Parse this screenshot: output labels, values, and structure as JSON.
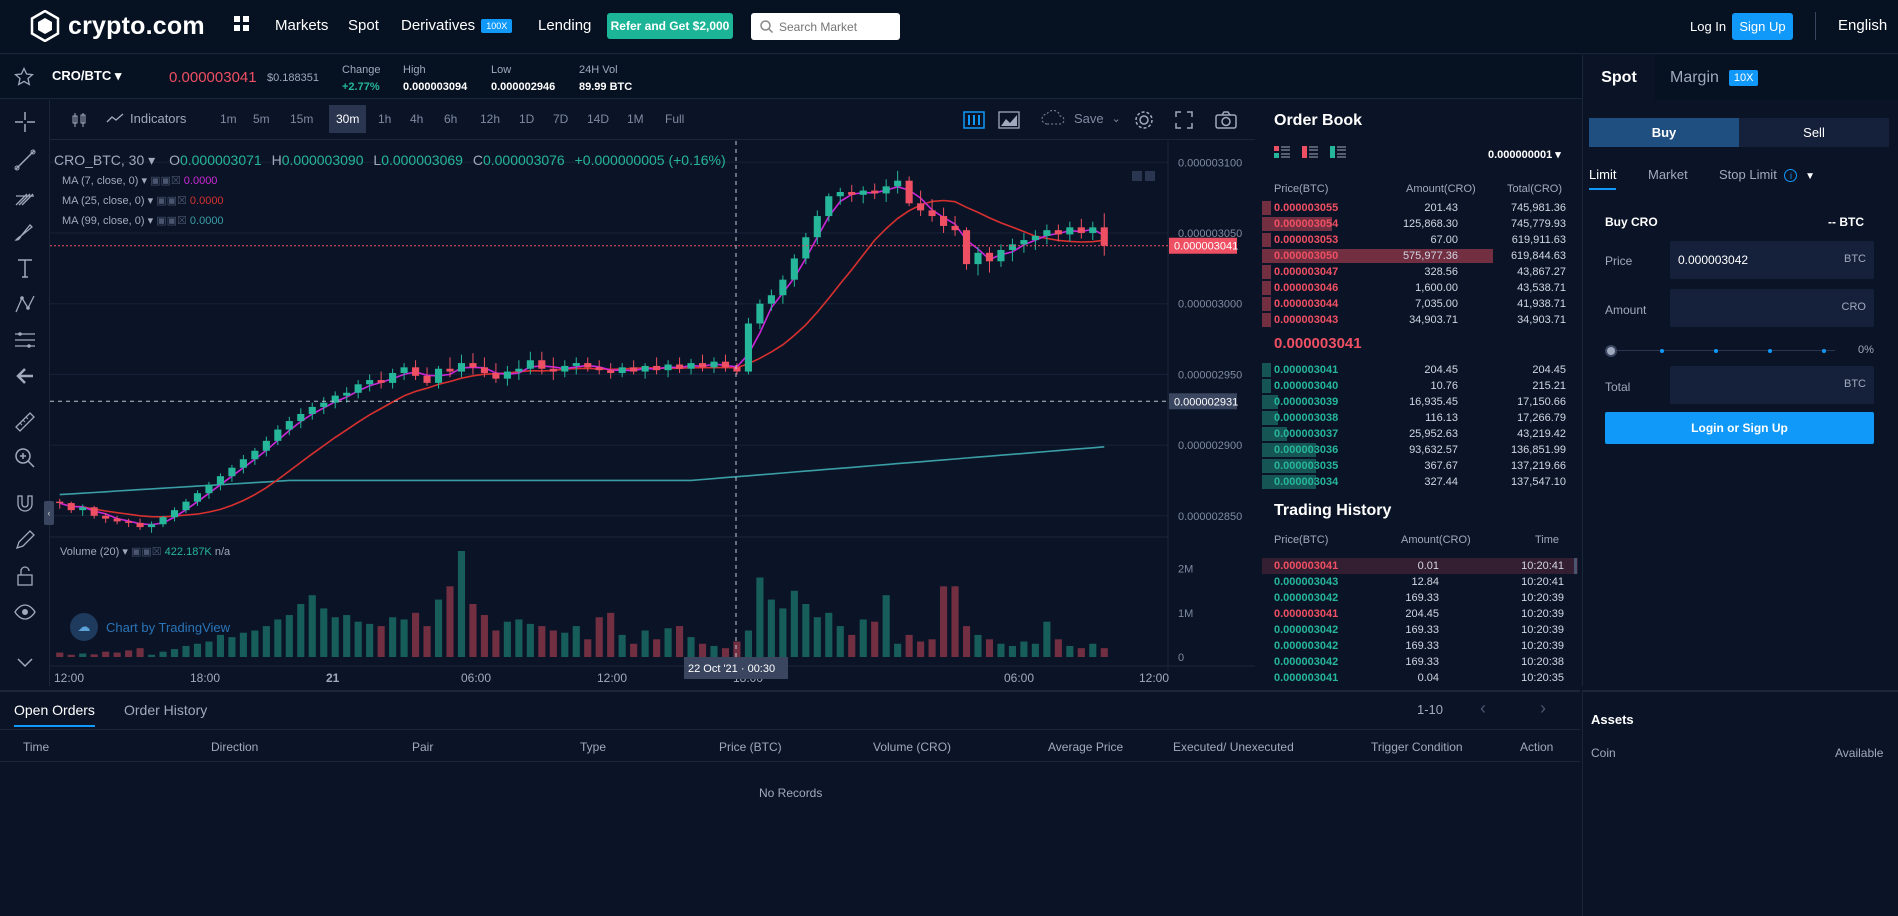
{
  "nav": {
    "logo_text": "crypto.com",
    "markets": "Markets",
    "spot": "Spot",
    "derivatives": "Derivatives",
    "derivatives_badge": "100X",
    "lending": "Lending",
    "refer": "Refer and Get $2,000",
    "search_placeholder": "Search Market",
    "login": "Log In",
    "signup": "Sign Up",
    "language": "English"
  },
  "ticker": {
    "pair": "CRO/BTC",
    "price": "0.000003041",
    "usd": "$0.188351",
    "change_label": "Change",
    "change": "+2.77%",
    "high_label": "High",
    "high": "0.000003094",
    "low_label": "Low",
    "low": "0.000002946",
    "vol_label": "24H Vol",
    "vol": "89.99 BTC"
  },
  "chart_toolbar": {
    "indicators": "Indicators",
    "timeframes": [
      "1m",
      "5m",
      "15m",
      "30m",
      "1h",
      "4h",
      "6h",
      "12h",
      "1D",
      "7D",
      "14D",
      "1M",
      "Full"
    ],
    "active_timeframe": "30m",
    "save": "Save"
  },
  "legend": {
    "symbol": "CRO_BTC, 30",
    "o_label": "O",
    "o": "0.000003071",
    "h_label": "H",
    "h": "0.000003090",
    "l_label": "L",
    "l": "0.000003069",
    "c_label": "C",
    "c": "0.000003076",
    "chg": "+0.000000005 (+0.16%)",
    "ma7": "MA (7, close, 0)",
    "ma7_val": "0.0000",
    "ma25": "MA (25, close, 0)",
    "ma25_val": "0.0000",
    "ma99": "MA (99, close, 0)",
    "ma99_val": "0.0000",
    "volume": "Volume (20)",
    "volume_val": "422.187K",
    "volume_na": "n/a",
    "watermark": "Chart by TradingView",
    "crosshair_date": "22 Oct '21 · 00:30",
    "last_price_tag": "0.000003041",
    "crosshair_price_tag": "0.000002931"
  },
  "chart_data": {
    "type": "candlestick",
    "price_axis": [
      "0.000003100",
      "0.000003050",
      "0.000003000",
      "0.000002950",
      "0.000002900",
      "0.000002850"
    ],
    "volume_axis": [
      "2M",
      "1M",
      "0"
    ],
    "time_axis": [
      "12:00",
      "18:00",
      "21",
      "06:00",
      "12:00",
      "18:00",
      "06:00",
      "12:00"
    ],
    "candles": [
      [
        2.86,
        2.862,
        2.855,
        2.859
      ],
      [
        2.859,
        2.86,
        2.852,
        2.854
      ],
      [
        2.854,
        2.858,
        2.85,
        2.856
      ],
      [
        2.856,
        2.857,
        2.848,
        2.85
      ],
      [
        2.85,
        2.852,
        2.845,
        2.848
      ],
      [
        2.848,
        2.85,
        2.844,
        2.846
      ],
      [
        2.846,
        2.848,
        2.842,
        2.845
      ],
      [
        2.845,
        2.848,
        2.84,
        2.842
      ],
      [
        2.842,
        2.846,
        2.838,
        2.844
      ],
      [
        2.844,
        2.85,
        2.842,
        2.849
      ],
      [
        2.849,
        2.856,
        2.846,
        2.854
      ],
      [
        2.854,
        2.862,
        2.852,
        2.86
      ],
      [
        2.86,
        2.868,
        2.857,
        2.866
      ],
      [
        2.866,
        2.874,
        2.862,
        2.872
      ],
      [
        2.872,
        2.88,
        2.868,
        2.878
      ],
      [
        2.878,
        2.886,
        2.874,
        2.884
      ],
      [
        2.884,
        2.893,
        2.88,
        2.89
      ],
      [
        2.89,
        2.898,
        2.886,
        2.896
      ],
      [
        2.896,
        2.906,
        2.892,
        2.903
      ],
      [
        2.903,
        2.914,
        2.9,
        2.911
      ],
      [
        2.911,
        2.92,
        2.907,
        2.917
      ],
      [
        2.917,
        2.926,
        2.912,
        2.922
      ],
      [
        2.922,
        2.93,
        2.918,
        2.927
      ],
      [
        2.927,
        2.934,
        2.922,
        2.93
      ],
      [
        2.93,
        2.938,
        2.926,
        2.935
      ],
      [
        2.935,
        2.941,
        2.93,
        2.937
      ],
      [
        2.937,
        2.946,
        2.933,
        2.943
      ],
      [
        2.943,
        2.95,
        2.938,
        2.946
      ],
      [
        2.946,
        2.952,
        2.94,
        2.944
      ],
      [
        2.944,
        2.954,
        2.94,
        2.951
      ],
      [
        2.951,
        2.958,
        2.946,
        2.955
      ],
      [
        2.955,
        2.96,
        2.946,
        2.949
      ],
      [
        2.949,
        2.955,
        2.942,
        2.944
      ],
      [
        2.944,
        2.956,
        2.94,
        2.954
      ],
      [
        2.954,
        2.962,
        2.948,
        2.952
      ],
      [
        2.952,
        2.964,
        2.948,
        2.958
      ],
      [
        2.958,
        2.965,
        2.95,
        2.955
      ],
      [
        2.955,
        2.962,
        2.948,
        2.951
      ],
      [
        2.951,
        2.958,
        2.944,
        2.947
      ],
      [
        2.947,
        2.956,
        2.942,
        2.952
      ],
      [
        2.952,
        2.96,
        2.946,
        2.954
      ],
      [
        2.954,
        2.966,
        2.95,
        2.96
      ],
      [
        2.96,
        2.966,
        2.95,
        2.954
      ],
      [
        2.954,
        2.962,
        2.946,
        2.952
      ],
      [
        2.952,
        2.96,
        2.948,
        2.956
      ],
      [
        2.956,
        2.962,
        2.95,
        2.958
      ],
      [
        2.958,
        2.962,
        2.952,
        2.955
      ],
      [
        2.955,
        2.96,
        2.95,
        2.953
      ],
      [
        2.953,
        2.958,
        2.947,
        2.951
      ],
      [
        2.951,
        2.958,
        2.948,
        2.955
      ],
      [
        2.955,
        2.96,
        2.95,
        2.952
      ],
      [
        2.952,
        2.958,
        2.947,
        2.956
      ],
      [
        2.956,
        2.962,
        2.95,
        2.953
      ],
      [
        2.953,
        2.96,
        2.948,
        2.957
      ],
      [
        2.957,
        2.962,
        2.951,
        2.954
      ],
      [
        2.954,
        2.961,
        2.95,
        2.958
      ],
      [
        2.958,
        2.964,
        2.952,
        2.955
      ],
      [
        2.955,
        2.962,
        2.951,
        2.959
      ],
      [
        2.959,
        2.964,
        2.952,
        2.955
      ],
      [
        2.955,
        2.958,
        2.95,
        2.952
      ],
      [
        2.952,
        2.99,
        2.95,
        2.986
      ],
      [
        2.986,
        3.003,
        2.982,
        3.0
      ],
      [
        3.0,
        3.01,
        2.995,
        3.006
      ],
      [
        3.006,
        3.02,
        3.0,
        3.017
      ],
      [
        3.017,
        3.035,
        3.012,
        3.032
      ],
      [
        3.032,
        3.05,
        3.028,
        3.047
      ],
      [
        3.047,
        3.066,
        3.042,
        3.062
      ],
      [
        3.062,
        3.078,
        3.058,
        3.076
      ],
      [
        3.076,
        3.082,
        3.07,
        3.079
      ],
      [
        3.079,
        3.084,
        3.072,
        3.077
      ],
      [
        3.077,
        3.083,
        3.071,
        3.08
      ],
      [
        3.08,
        3.085,
        3.074,
        3.078
      ],
      [
        3.078,
        3.088,
        3.072,
        3.083
      ],
      [
        3.083,
        3.094,
        3.078,
        3.087
      ],
      [
        3.087,
        3.09,
        3.069,
        3.071
      ],
      [
        3.071,
        3.08,
        3.062,
        3.066
      ],
      [
        3.066,
        3.074,
        3.058,
        3.062
      ],
      [
        3.062,
        3.068,
        3.05,
        3.055
      ],
      [
        3.055,
        3.062,
        3.048,
        3.052
      ],
      [
        3.052,
        3.054,
        3.024,
        3.028
      ],
      [
        3.028,
        3.04,
        3.02,
        3.036
      ],
      [
        3.036,
        3.04,
        3.022,
        3.03
      ],
      [
        3.03,
        3.042,
        3.026,
        3.038
      ],
      [
        3.038,
        3.046,
        3.03,
        3.042
      ],
      [
        3.042,
        3.05,
        3.036,
        3.045
      ],
      [
        3.045,
        3.052,
        3.038,
        3.048
      ],
      [
        3.048,
        3.056,
        3.042,
        3.052
      ],
      [
        3.052,
        3.056,
        3.044,
        3.049
      ],
      [
        3.049,
        3.058,
        3.044,
        3.054
      ],
      [
        3.054,
        3.06,
        3.046,
        3.05
      ],
      [
        3.05,
        3.058,
        3.045,
        3.054
      ],
      [
        3.054,
        3.064,
        3.034,
        3.041
      ]
    ],
    "volumes": [
      0.1,
      0.05,
      0.08,
      0.06,
      0.12,
      0.1,
      0.15,
      0.2,
      0.05,
      0.12,
      0.18,
      0.25,
      0.3,
      0.35,
      0.5,
      0.45,
      0.55,
      0.6,
      0.7,
      0.85,
      0.95,
      1.2,
      1.4,
      1.1,
      0.9,
      0.95,
      0.8,
      0.75,
      0.7,
      0.9,
      0.85,
      1.0,
      0.7,
      1.3,
      1.6,
      2.4,
      1.2,
      0.95,
      0.6,
      0.8,
      0.85,
      0.75,
      0.7,
      0.6,
      0.55,
      0.7,
      0.4,
      0.9,
      1.0,
      0.5,
      0.3,
      0.6,
      0.4,
      0.65,
      0.7,
      0.45,
      0.3,
      0.25,
      0.2,
      0.35,
      0.6,
      1.8,
      1.3,
      1.1,
      1.5,
      1.2,
      0.9,
      1.0,
      0.7,
      0.5,
      0.85,
      0.8,
      1.4,
      0.3,
      0.5,
      0.35,
      0.4,
      1.6,
      1.6,
      0.7,
      0.5,
      0.4,
      0.3,
      0.25,
      0.35,
      0.3,
      0.8,
      0.4,
      0.25,
      0.2,
      0.3,
      0.2
    ],
    "vol_ylim": [
      0,
      2.4
    ]
  },
  "orderbook": {
    "title": "Order Book",
    "precision": "0.000000001",
    "headers": [
      "Price(BTC)",
      "Amount(CRO)",
      "Total(CRO)"
    ],
    "asks": [
      {
        "price": "0.000003055",
        "amount": "201.43",
        "total": "745,981.36",
        "depth": 0.03
      },
      {
        "price": "0.000003054",
        "amount": "125,868.30",
        "total": "745,779.93",
        "depth": 0.22
      },
      {
        "price": "0.000003053",
        "amount": "67.00",
        "total": "619,911.63",
        "depth": 0.03
      },
      {
        "price": "0.000003050",
        "amount": "575,977.36",
        "total": "619,844.63",
        "depth": 0.73
      },
      {
        "price": "0.000003047",
        "amount": "328.56",
        "total": "43,867.27",
        "depth": 0.03
      },
      {
        "price": "0.000003046",
        "amount": "1,600.00",
        "total": "43,538.71",
        "depth": 0.03
      },
      {
        "price": "0.000003044",
        "amount": "7,035.00",
        "total": "41,938.71",
        "depth": 0.03
      },
      {
        "price": "0.000003043",
        "amount": "34,903.71",
        "total": "34,903.71",
        "depth": 0.03
      }
    ],
    "mid_price": "0.000003041",
    "bids": [
      {
        "price": "0.000003041",
        "amount": "204.45",
        "total": "204.45",
        "depth": 0.03
      },
      {
        "price": "0.000003040",
        "amount": "10.76",
        "total": "215.21",
        "depth": 0.03
      },
      {
        "price": "0.000003039",
        "amount": "16,935.45",
        "total": "17,150.66",
        "depth": 0.05
      },
      {
        "price": "0.000003038",
        "amount": "116.13",
        "total": "17,266.79",
        "depth": 0.05
      },
      {
        "price": "0.000003037",
        "amount": "25,952.63",
        "total": "43,219.42",
        "depth": 0.08
      },
      {
        "price": "0.000003036",
        "amount": "93,632.57",
        "total": "136,851.99",
        "depth": 0.17
      },
      {
        "price": "0.000003035",
        "amount": "367.67",
        "total": "137,219.66",
        "depth": 0.17
      },
      {
        "price": "0.000003034",
        "amount": "327.44",
        "total": "137,547.10",
        "depth": 0.17
      }
    ]
  },
  "history": {
    "title": "Trading History",
    "headers": [
      "Price(BTC)",
      "Amount(CRO)",
      "Time"
    ],
    "rows": [
      {
        "price": "0.000003041",
        "amount": "0.01",
        "time": "10:20:41",
        "side": "sell"
      },
      {
        "price": "0.000003043",
        "amount": "12.84",
        "time": "10:20:41",
        "side": "buy"
      },
      {
        "price": "0.000003042",
        "amount": "169.33",
        "time": "10:20:39",
        "side": "buy"
      },
      {
        "price": "0.000003041",
        "amount": "204.45",
        "time": "10:20:39",
        "side": "sell"
      },
      {
        "price": "0.000003042",
        "amount": "169.33",
        "time": "10:20:39",
        "side": "buy"
      },
      {
        "price": "0.000003042",
        "amount": "169.33",
        "time": "10:20:39",
        "side": "buy"
      },
      {
        "price": "0.000003042",
        "amount": "169.33",
        "time": "10:20:38",
        "side": "buy"
      },
      {
        "price": "0.000003041",
        "amount": "0.04",
        "time": "10:20:35",
        "side": "buy"
      }
    ]
  },
  "trade": {
    "tab_spot": "Spot",
    "tab_margin": "Margin",
    "margin_badge": "10X",
    "buy": "Buy",
    "sell": "Sell",
    "limit": "Limit",
    "market": "Market",
    "stop_limit": "Stop Limit",
    "buy_title": "Buy CRO",
    "balance": "-- BTC",
    "price_label": "Price",
    "price_value": "0.000003042",
    "price_unit": "BTC",
    "amount_label": "Amount",
    "amount_unit": "CRO",
    "percent": "0%",
    "total_label": "Total",
    "total_unit": "BTC",
    "login_btn": "Login or Sign Up"
  },
  "orders": {
    "tab_open": "Open Orders",
    "tab_history": "Order History",
    "pagination": "1-10",
    "headers": [
      "Time",
      "Direction",
      "Pair",
      "Type",
      "Price (BTC)",
      "Volume (CRO)",
      "Average Price",
      "Executed/ Unexecuted",
      "Trigger Condition",
      "Action"
    ],
    "empty": "No Records"
  },
  "assets": {
    "title": "Assets",
    "coin": "Coin",
    "available": "Available"
  },
  "colors": {
    "bg": "#0b1426",
    "up": "#26b69a",
    "down": "#ef4f63",
    "accent": "#1199fa",
    "ma7": "#cc27d8",
    "ma25": "#d8302f",
    "ma99": "#3a9ea6"
  }
}
